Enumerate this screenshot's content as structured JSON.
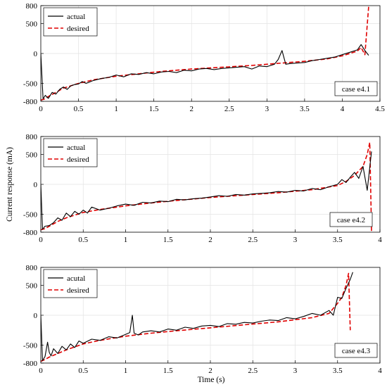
{
  "figure": {
    "ylabel": "Current response (mA)",
    "xlabel": "Time (s)"
  },
  "chart_data": [
    {
      "type": "line",
      "case_label": "case e4.1",
      "xlim": [
        0,
        4.5
      ],
      "ylim": [
        -800,
        800
      ],
      "xticks": [
        0,
        0.5,
        1,
        1.5,
        2,
        2.5,
        3,
        3.5,
        4,
        4.5
      ],
      "yticks": [
        -800,
        -500,
        0,
        500,
        800
      ],
      "grid": true,
      "legend_position": "top-left",
      "colors": {
        "actual": "#000000",
        "desired": "#e00000"
      },
      "series": [
        {
          "name": "actual",
          "style": "solid",
          "x": [
            0,
            0.03,
            0.06,
            0.1,
            0.15,
            0.2,
            0.25,
            0.3,
            0.35,
            0.4,
            0.45,
            0.5,
            0.55,
            0.6,
            0.7,
            0.8,
            0.9,
            1.0,
            1.1,
            1.2,
            1.3,
            1.4,
            1.5,
            1.6,
            1.7,
            1.8,
            1.9,
            2.0,
            2.1,
            2.2,
            2.3,
            2.4,
            2.5,
            2.6,
            2.7,
            2.8,
            2.9,
            3.0,
            3.1,
            3.15,
            3.2,
            3.25,
            3.3,
            3.4,
            3.5,
            3.6,
            3.7,
            3.8,
            3.9,
            4.0,
            4.1,
            4.2,
            4.25,
            4.3,
            4.35
          ],
          "y": [
            0,
            -760,
            -700,
            -750,
            -650,
            -680,
            -600,
            -560,
            -600,
            -540,
            -520,
            -510,
            -470,
            -500,
            -450,
            -420,
            -400,
            -360,
            -390,
            -340,
            -350,
            -320,
            -340,
            -310,
            -300,
            -320,
            -280,
            -290,
            -260,
            -250,
            -270,
            -250,
            -240,
            -230,
            -220,
            -260,
            -210,
            -220,
            -180,
            -100,
            50,
            -180,
            -170,
            -160,
            -150,
            -120,
            -100,
            -80,
            -60,
            -20,
            20,
            60,
            150,
            50,
            -30
          ]
        },
        {
          "name": "desired",
          "style": "dashed",
          "x": [
            0,
            0.05,
            0.1,
            0.2,
            0.3,
            0.5,
            0.7,
            1.0,
            1.3,
            1.6,
            2.0,
            2.4,
            2.8,
            3.2,
            3.5,
            3.8,
            4.0,
            4.1,
            4.2,
            4.25,
            4.3,
            4.35
          ],
          "y": [
            -780,
            -760,
            -720,
            -650,
            -580,
            -500,
            -440,
            -380,
            -340,
            -300,
            -260,
            -230,
            -200,
            -160,
            -130,
            -90,
            -40,
            0,
            40,
            100,
            -20,
            780
          ]
        }
      ]
    },
    {
      "type": "line",
      "case_label": "case e4.2",
      "xlim": [
        0,
        4
      ],
      "ylim": [
        -800,
        800
      ],
      "xticks": [
        0,
        0.5,
        1,
        1.5,
        2,
        2.5,
        3,
        3.5,
        4
      ],
      "yticks": [
        -800,
        -500,
        0,
        500,
        800
      ],
      "grid": true,
      "legend_position": "top-left",
      "colors": {
        "actual": "#000000",
        "desired": "#e00000"
      },
      "series": [
        {
          "name": "actual",
          "style": "solid",
          "x": [
            0,
            0.02,
            0.05,
            0.1,
            0.15,
            0.2,
            0.25,
            0.3,
            0.35,
            0.4,
            0.45,
            0.5,
            0.55,
            0.6,
            0.7,
            0.8,
            0.9,
            1.0,
            1.1,
            1.2,
            1.3,
            1.4,
            1.5,
            1.6,
            1.7,
            1.8,
            1.9,
            2.0,
            2.1,
            2.2,
            2.3,
            2.4,
            2.5,
            2.6,
            2.7,
            2.8,
            2.9,
            3.0,
            3.1,
            3.2,
            3.3,
            3.4,
            3.5,
            3.55,
            3.6,
            3.65,
            3.7,
            3.75,
            3.8,
            3.85,
            3.9
          ],
          "y": [
            0,
            -750,
            -700,
            -690,
            -640,
            -560,
            -600,
            -480,
            -540,
            -450,
            -500,
            -430,
            -480,
            -380,
            -430,
            -400,
            -360,
            -330,
            -350,
            -300,
            -310,
            -280,
            -290,
            -250,
            -260,
            -240,
            -230,
            -210,
            -190,
            -200,
            -170,
            -180,
            -160,
            -150,
            -140,
            -120,
            -130,
            -100,
            -110,
            -70,
            -90,
            -40,
            0,
            80,
            30,
            120,
            200,
            100,
            300,
            -100,
            550
          ]
        },
        {
          "name": "desired",
          "style": "dashed",
          "x": [
            0,
            0.05,
            0.1,
            0.2,
            0.3,
            0.5,
            0.7,
            1.0,
            1.3,
            1.6,
            2.0,
            2.4,
            2.8,
            3.2,
            3.5,
            3.6,
            3.7,
            3.8,
            3.85,
            3.88,
            3.9
          ],
          "y": [
            -760,
            -740,
            -700,
            -620,
            -560,
            -470,
            -420,
            -360,
            -310,
            -270,
            -220,
            -180,
            -140,
            -90,
            -20,
            50,
            150,
            300,
            500,
            700,
            -780
          ]
        }
      ]
    },
    {
      "type": "line",
      "case_label": "case e4.3",
      "xlim": [
        0,
        4
      ],
      "ylim": [
        -800,
        800
      ],
      "xticks": [
        0,
        0.5,
        1,
        1.5,
        2,
        2.5,
        3,
        3.5,
        4
      ],
      "yticks": [
        -800,
        -500,
        0,
        500,
        800
      ],
      "grid": true,
      "legend_position": "top-left",
      "colors": {
        "actual": "#000000",
        "desired": "#e00000"
      },
      "series": [
        {
          "name": "acutal",
          "style": "solid",
          "x": [
            0,
            0.02,
            0.05,
            0.08,
            0.1,
            0.12,
            0.15,
            0.2,
            0.25,
            0.3,
            0.35,
            0.4,
            0.45,
            0.5,
            0.6,
            0.7,
            0.8,
            0.9,
            1.0,
            1.05,
            1.08,
            1.1,
            1.15,
            1.2,
            1.3,
            1.4,
            1.5,
            1.6,
            1.7,
            1.8,
            1.9,
            2.0,
            2.1,
            2.2,
            2.3,
            2.4,
            2.5,
            2.6,
            2.7,
            2.8,
            2.9,
            3.0,
            3.1,
            3.2,
            3.3,
            3.4,
            3.45,
            3.5,
            3.55,
            3.6,
            3.65,
            3.68
          ],
          "y": [
            0,
            -760,
            -690,
            -450,
            -620,
            -680,
            -560,
            -640,
            -520,
            -580,
            -480,
            -540,
            -430,
            -470,
            -400,
            -420,
            -360,
            -380,
            -320,
            -290,
            0,
            -300,
            -330,
            -280,
            -260,
            -280,
            -230,
            -250,
            -200,
            -220,
            -180,
            -170,
            -190,
            -140,
            -150,
            -120,
            -130,
            -100,
            -80,
            -90,
            -40,
            -60,
            -20,
            30,
            0,
            80,
            0,
            300,
            280,
            450,
            600,
            720
          ]
        },
        {
          "name": "desired",
          "style": "dashed",
          "x": [
            0,
            0.05,
            0.1,
            0.2,
            0.3,
            0.5,
            0.7,
            1.0,
            1.3,
            1.6,
            2.0,
            2.4,
            2.8,
            3.2,
            3.4,
            3.5,
            3.55,
            3.6,
            3.63,
            3.65
          ],
          "y": [
            -770,
            -740,
            -700,
            -640,
            -580,
            -480,
            -420,
            -350,
            -300,
            -260,
            -210,
            -160,
            -110,
            -40,
            30,
            200,
            300,
            500,
            700,
            -250
          ]
        }
      ]
    }
  ]
}
